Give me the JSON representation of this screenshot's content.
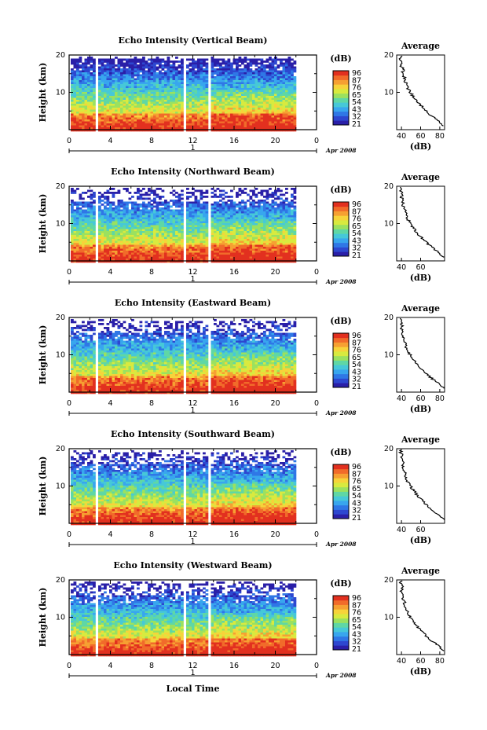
{
  "colors": {
    "colormap": [
      "#2a1fa8",
      "#2d47d0",
      "#2f77e6",
      "#38a6ee",
      "#46c8d8",
      "#5fd7a5",
      "#9be15f",
      "#d8ea3f",
      "#f7d33a",
      "#f6a032",
      "#f16b2a",
      "#e2301f"
    ],
    "axis": "#000000",
    "gap": "#ffffff"
  },
  "panels": [
    {
      "title": "Echo Intensity (Vertical Beam)",
      "dir": "v",
      "avg_xticks": [
        "40",
        "60",
        "80"
      ]
    },
    {
      "title": "Echo Intensity (Northward Beam)",
      "dir": "n",
      "avg_xticks": [
        "40",
        "60"
      ]
    },
    {
      "title": "Echo Intensity (Eastward Beam)",
      "dir": "e",
      "avg_xticks": [
        "40",
        "60",
        "80"
      ]
    },
    {
      "title": "Echo Intensity (Southward Beam)",
      "dir": "s",
      "avg_xticks": [
        "40",
        "60"
      ]
    },
    {
      "title": "Echo Intensity (Westward Beam)",
      "dir": "w",
      "avg_xticks": [
        "40",
        "60",
        "80"
      ]
    }
  ],
  "common": {
    "ylabel": "Height (km)",
    "ylim": [
      0,
      20
    ],
    "yticks": [
      "20",
      "10"
    ],
    "xlim": [
      0,
      24
    ],
    "xticks": [
      "0",
      "4",
      "8",
      "12",
      "16",
      "20",
      "0"
    ],
    "day_label": "1",
    "date_label": "Apr 2008",
    "colorbar_unit": "(dB)",
    "colorbar_ticks": [
      "96",
      "87",
      "76",
      "65",
      "54",
      "43",
      "32",
      "21"
    ],
    "avg_title": "Average",
    "avg_xlabel": "(dB)",
    "avg_yticks": [
      "20",
      "10"
    ],
    "xlabel": "Local Time"
  },
  "chart_data": {
    "type": "heatmap",
    "x_unit": "Local Time (h)",
    "y_unit": "Height (km)",
    "data_gaps_hours": [
      [
        2.3,
        2.6
      ],
      [
        10.9,
        11.2
      ],
      [
        13.3,
        13.6
      ]
    ],
    "data_end_hour": 21.8,
    "colorbar_range_db": [
      21,
      96
    ],
    "average_profile_height_km": [
      1,
      2,
      3,
      4,
      5,
      6,
      7,
      8,
      9,
      10,
      11,
      12,
      13,
      14,
      15,
      16,
      17,
      18,
      19,
      20
    ],
    "average_profile_db": [
      84,
      80,
      75,
      70,
      66,
      62,
      58,
      55,
      52,
      49,
      47,
      45,
      44,
      43,
      41,
      42,
      40,
      41,
      39,
      40
    ]
  }
}
